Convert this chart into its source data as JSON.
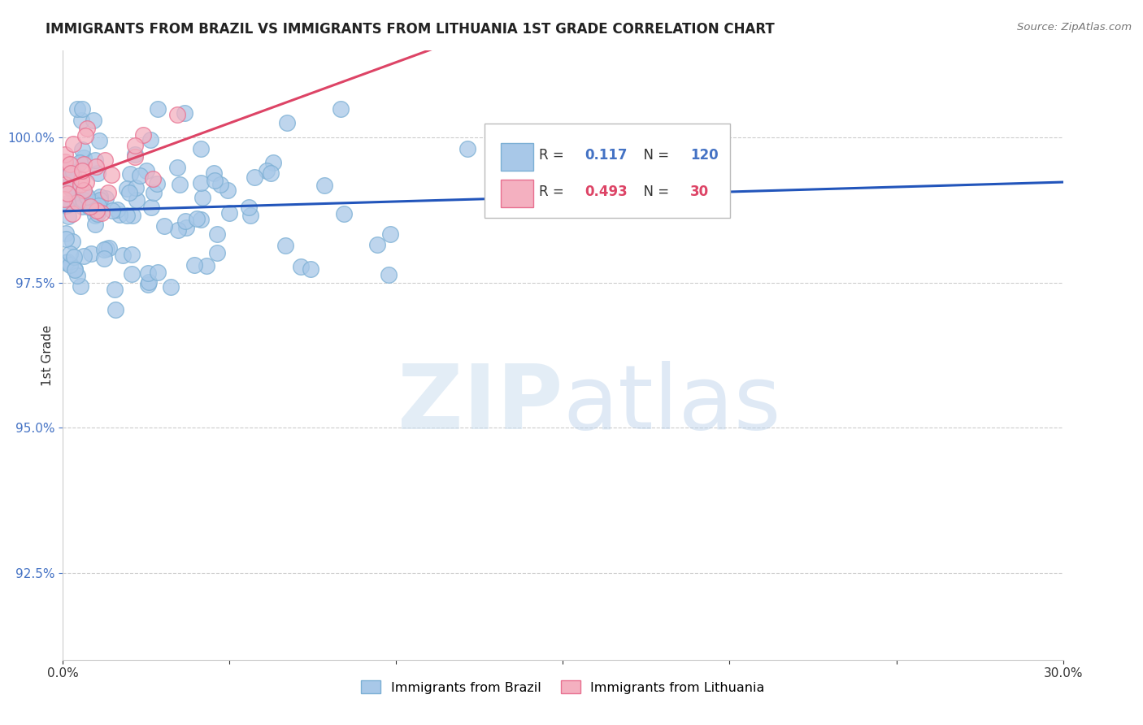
{
  "title": "IMMIGRANTS FROM BRAZIL VS IMMIGRANTS FROM LITHUANIA 1ST GRADE CORRELATION CHART",
  "source": "Source: ZipAtlas.com",
  "ylabel": "1st Grade",
  "xlim": [
    0.0,
    30.0
  ],
  "ylim": [
    91.0,
    101.5
  ],
  "yticks": [
    92.5,
    95.0,
    97.5,
    100.0
  ],
  "ytick_labels": [
    "92.5%",
    "95.0%",
    "97.5%",
    "100.0%"
  ],
  "brazil_color_face": "#a8c8e8",
  "brazil_color_edge": "#7bafd4",
  "lithuania_color_face": "#f4b0c0",
  "lithuania_color_edge": "#e87090",
  "brazil_R": 0.117,
  "brazil_N": 120,
  "lithuania_R": 0.493,
  "lithuania_N": 30,
  "trend_brazil_color": "#2255bb",
  "trend_lithuania_color": "#dd4466",
  "legend_brazil": "Immigrants from Brazil",
  "legend_lithuania": "Immigrants from Lithuania",
  "brazil_seed": 42,
  "lithuania_seed": 7
}
